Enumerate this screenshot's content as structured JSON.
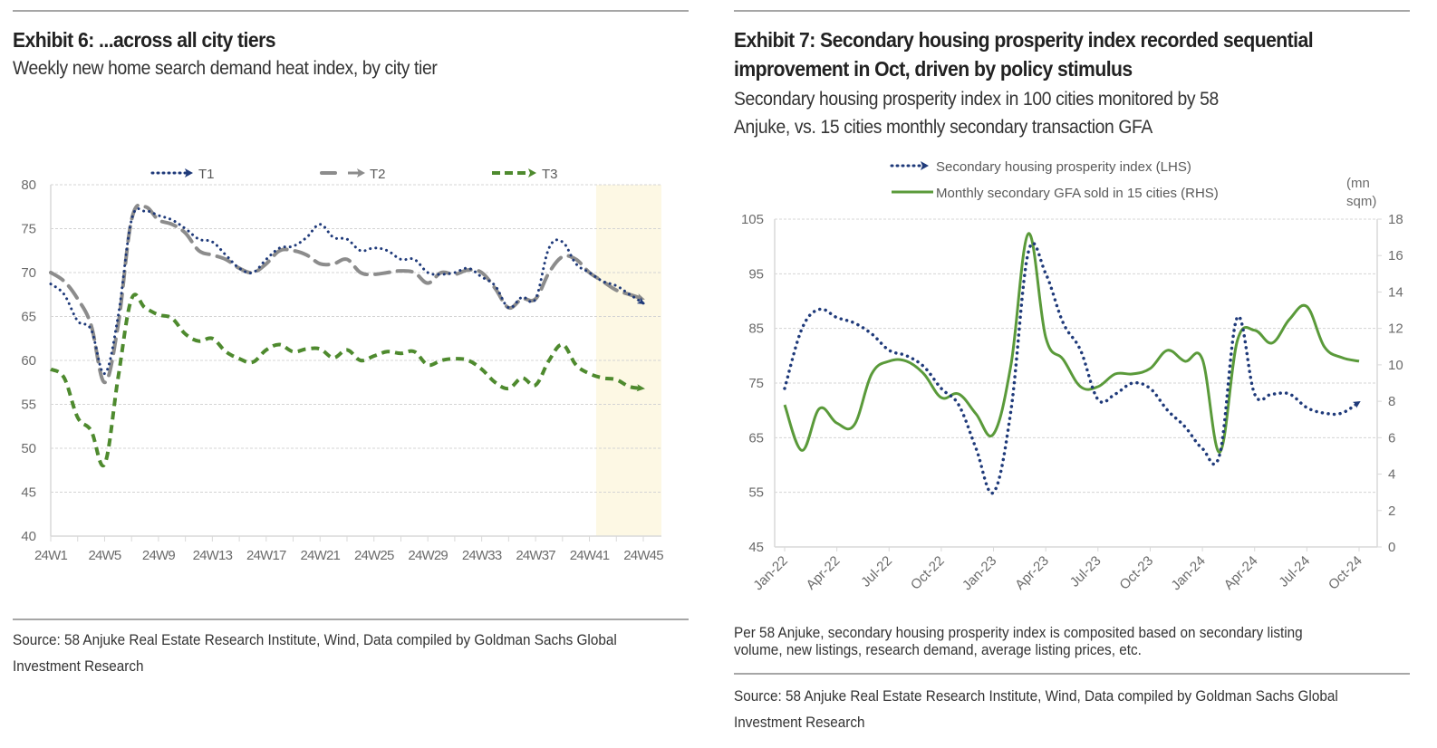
{
  "exhibit6": {
    "title": "Exhibit 6: ...across all city tiers",
    "subtitle": "Weekly new home search demand heat index, by city tier",
    "source_line1": "Source: 58 Anjuke Real Estate Research Institute, Wind, Data compiled by Goldman Sachs Global",
    "source_line2": "Investment Research"
  },
  "exhibit7": {
    "title_line1": "Exhibit 7: Secondary housing prosperity index recorded sequential",
    "title_line2": "improvement in Oct, driven by policy stimulus",
    "subtitle_line1": "Secondary housing prosperity index in 100 cities monitored by 58",
    "subtitle_line2": "Anjuke, vs. 15 cities monthly secondary transaction GFA",
    "note_line1": "Per 58 Anjuke, secondary housing prosperity index is composited based on secondary listing",
    "note_line2": "volume, new listings, research demand, average listing prices, etc.",
    "source_line1": "Source: 58 Anjuke Real Estate Research Institute, Wind, Data compiled by Goldman Sachs Global",
    "source_line2": "Investment Research"
  },
  "chart_data": [
    {
      "type": "line",
      "title": "Weekly new home search demand heat index, by city tier",
      "xlabel": "",
      "ylabel": "",
      "ylim": [
        40,
        80
      ],
      "yticks": [
        40,
        45,
        50,
        55,
        60,
        65,
        70,
        75,
        80
      ],
      "x": [
        "24W1",
        "24W2",
        "24W3",
        "24W4",
        "24W5",
        "24W6",
        "24W7",
        "24W8",
        "24W9",
        "24W10",
        "24W11",
        "24W12",
        "24W13",
        "24W14",
        "24W15",
        "24W16",
        "24W17",
        "24W18",
        "24W19",
        "24W20",
        "24W21",
        "24W22",
        "24W23",
        "24W24",
        "24W25",
        "24W26",
        "24W27",
        "24W28",
        "24W29",
        "24W30",
        "24W31",
        "24W32",
        "24W33",
        "24W34",
        "24W35",
        "24W36",
        "24W37",
        "24W38",
        "24W39",
        "24W40",
        "24W41",
        "24W42",
        "24W43",
        "24W44",
        "24W45"
      ],
      "xtick_labels": [
        "24W1",
        "24W5",
        "24W9",
        "24W13",
        "24W17",
        "24W21",
        "24W25",
        "24W29",
        "24W33",
        "24W37",
        "24W41",
        "24W45"
      ],
      "grid": "horizontal dashed",
      "legend_position": "top",
      "highlight_region": {
        "from": "24W42",
        "to": "24W45",
        "color": "#fdf8e4"
      },
      "series": [
        {
          "name": "T1",
          "style": "dotted",
          "color": "#1f3a7a",
          "values": [
            68.7,
            67.5,
            64.5,
            63.5,
            58.5,
            65,
            76,
            77,
            76.5,
            76,
            75,
            73.8,
            73.5,
            72,
            70.5,
            70,
            71.5,
            72.8,
            73,
            74,
            75.5,
            74,
            73.8,
            72.5,
            72.8,
            72.5,
            71.5,
            71.5,
            70,
            69.8,
            70,
            70.5,
            69.5,
            68.5,
            66,
            67.2,
            67,
            72.8,
            73.5,
            71,
            70,
            69,
            68.5,
            67.5,
            66.5
          ]
        },
        {
          "name": "T2",
          "style": "long-dash",
          "color": "#7f7f7f",
          "values": [
            70,
            69,
            67,
            64,
            57.5,
            64,
            76,
            77.5,
            76,
            75.5,
            74.5,
            72.5,
            72,
            71.5,
            70.5,
            70,
            71,
            72.5,
            72.5,
            72,
            71,
            71,
            71.5,
            70,
            69.8,
            70,
            70.2,
            70,
            68.8,
            70,
            69.8,
            70.3,
            70,
            68.2,
            66,
            67,
            67,
            70,
            71.8,
            71.5,
            70,
            69,
            68,
            67.5,
            67
          ]
        },
        {
          "name": "T3",
          "style": "dash",
          "color": "#4e8a2e",
          "values": [
            59,
            58,
            53.5,
            52,
            48.2,
            58,
            67,
            66,
            65.2,
            64.8,
            63,
            62.2,
            62.5,
            61,
            60.2,
            59.8,
            61.2,
            61.8,
            61,
            61.3,
            61.3,
            60.3,
            61.2,
            60,
            60.5,
            61,
            60.8,
            61,
            59.5,
            60,
            60.2,
            60,
            59,
            57.5,
            56.8,
            58,
            57.2,
            60,
            61.8,
            59.5,
            58.5,
            58,
            57.8,
            57,
            56.8
          ]
        }
      ]
    },
    {
      "type": "line",
      "title": "Secondary housing prosperity index in 100 cities monitored by 58 Anjuke, vs. 15 cities monthly secondary transaction GFA",
      "xlabel": "",
      "ylabel": "",
      "y2label": "(mn sqm)",
      "y2label_line1": "(mn",
      "y2label_line2": "sqm)",
      "ylim": [
        45,
        105
      ],
      "yticks": [
        45,
        55,
        65,
        75,
        85,
        95,
        105
      ],
      "y2lim": [
        0,
        18
      ],
      "y2ticks": [
        0,
        2,
        4,
        6,
        8,
        10,
        12,
        14,
        16,
        18
      ],
      "x": [
        "Jan-22",
        "Feb-22",
        "Mar-22",
        "Apr-22",
        "May-22",
        "Jun-22",
        "Jul-22",
        "Aug-22",
        "Sep-22",
        "Oct-22",
        "Nov-22",
        "Dec-22",
        "Jan-23",
        "Feb-23",
        "Mar-23",
        "Apr-23",
        "May-23",
        "Jun-23",
        "Jul-23",
        "Aug-23",
        "Sep-23",
        "Oct-23",
        "Nov-23",
        "Dec-23",
        "Jan-24",
        "Feb-24",
        "Mar-24",
        "Apr-24",
        "May-24",
        "Jun-24",
        "Jul-24",
        "Aug-24",
        "Sep-24",
        "Oct-24"
      ],
      "xtick_labels": [
        "Jan-22",
        "Apr-22",
        "Jul-22",
        "Oct-22",
        "Jan-23",
        "Apr-23",
        "Jul-23",
        "Oct-23",
        "Jan-24",
        "Apr-24",
        "Jul-24",
        "Oct-24"
      ],
      "grid": "horizontal dashed",
      "legend_position": "top",
      "series": [
        {
          "name": "Secondary housing prosperity index (LHS)",
          "axis": "left",
          "style": "dotted",
          "color": "#1f3a7a",
          "values": [
            74,
            85,
            88.5,
            87,
            86,
            84,
            81,
            80,
            78,
            74,
            71,
            63,
            55,
            70,
            99,
            95,
            86,
            81,
            72,
            73,
            75,
            74,
            70,
            67,
            63,
            62,
            87,
            73,
            73,
            73,
            70.5,
            69.5,
            69.5,
            71.5
          ]
        },
        {
          "name": "Monthly secondary GFA sold in 15 cities (RHS)",
          "axis": "right",
          "style": "solid",
          "color": "#5a9a3a",
          "values": [
            7.8,
            5.3,
            7.6,
            6.8,
            6.7,
            9.5,
            10.2,
            10.2,
            9.5,
            8.2,
            8.4,
            7.3,
            6.2,
            10,
            17.2,
            11.5,
            10.3,
            8.8,
            8.8,
            9.5,
            9.5,
            9.8,
            10.8,
            10.2,
            10.3,
            5.2,
            11.3,
            11.9,
            11.2,
            12.5,
            13.2,
            11,
            10.4,
            10.2
          ]
        }
      ]
    }
  ]
}
